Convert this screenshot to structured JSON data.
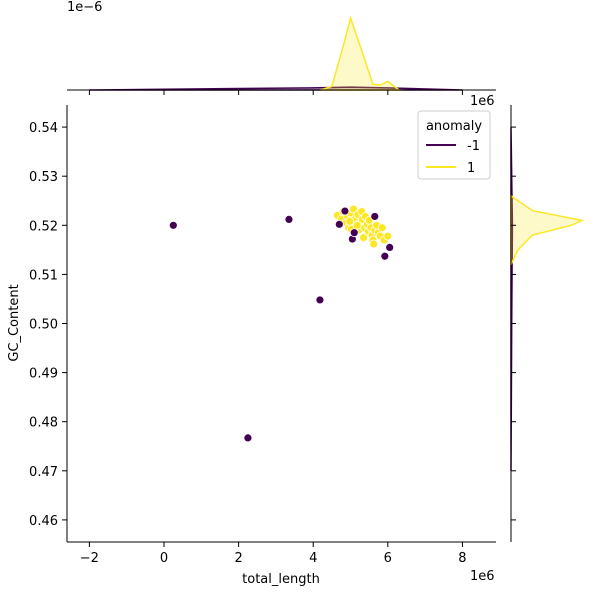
{
  "chart_data": {
    "type": "scatter",
    "title": "",
    "xlabel": "total_length",
    "ylabel": "GC_Content",
    "x_scale_label": "1e6",
    "y_scale_label": "",
    "top_marginal_scale_label": "1e−6",
    "right_marginal_scale_label": "1e6",
    "xlim": [
      -2.6,
      8.9
    ],
    "ylim": [
      0.4555,
      0.5445
    ],
    "x_ticks": [
      -2,
      0,
      2,
      4,
      6,
      8
    ],
    "x_tick_labels": [
      "−2",
      "0",
      "2",
      "4",
      "6",
      "8"
    ],
    "y_ticks": [
      0.46,
      0.47,
      0.48,
      0.49,
      0.5,
      0.51,
      0.52,
      0.53,
      0.54
    ],
    "y_tick_labels": [
      "0.46",
      "0.47",
      "0.48",
      "0.49",
      "0.50",
      "0.51",
      "0.52",
      "0.53",
      "0.54"
    ],
    "grid": false,
    "legend": {
      "title": "anomaly",
      "placement": "top-right",
      "entries": [
        {
          "label": "-1",
          "color": "#440154"
        },
        {
          "label": "1",
          "color": "#fde725"
        }
      ]
    },
    "series": [
      {
        "name": "-1",
        "color": "#440154",
        "points": [
          {
            "x": 0.25,
            "y": 0.52
          },
          {
            "x": 2.25,
            "y": 0.4767
          },
          {
            "x": 3.35,
            "y": 0.5212
          },
          {
            "x": 4.18,
            "y": 0.5048
          },
          {
            "x": 4.7,
            "y": 0.5202
          },
          {
            "x": 4.85,
            "y": 0.5229
          },
          {
            "x": 5.05,
            "y": 0.5172
          },
          {
            "x": 5.1,
            "y": 0.5185
          },
          {
            "x": 5.65,
            "y": 0.5218
          },
          {
            "x": 5.92,
            "y": 0.5137
          },
          {
            "x": 6.05,
            "y": 0.5155
          }
        ]
      },
      {
        "name": "1",
        "color": "#fde725",
        "points": [
          {
            "x": 4.65,
            "y": 0.522
          },
          {
            "x": 4.75,
            "y": 0.5212
          },
          {
            "x": 4.8,
            "y": 0.5228
          },
          {
            "x": 4.88,
            "y": 0.5205
          },
          {
            "x": 4.92,
            "y": 0.5218
          },
          {
            "x": 4.95,
            "y": 0.5195
          },
          {
            "x": 5.0,
            "y": 0.5225
          },
          {
            "x": 5.05,
            "y": 0.521
          },
          {
            "x": 5.08,
            "y": 0.5233
          },
          {
            "x": 5.12,
            "y": 0.5198
          },
          {
            "x": 5.15,
            "y": 0.5215
          },
          {
            "x": 5.2,
            "y": 0.5222
          },
          {
            "x": 5.22,
            "y": 0.519
          },
          {
            "x": 5.25,
            "y": 0.5205
          },
          {
            "x": 5.3,
            "y": 0.5228
          },
          {
            "x": 5.32,
            "y": 0.5212
          },
          {
            "x": 5.38,
            "y": 0.5195
          },
          {
            "x": 5.4,
            "y": 0.5218
          },
          {
            "x": 5.45,
            "y": 0.5202
          },
          {
            "x": 5.48,
            "y": 0.5188
          },
          {
            "x": 5.5,
            "y": 0.521
          },
          {
            "x": 5.55,
            "y": 0.5195
          },
          {
            "x": 5.58,
            "y": 0.518
          },
          {
            "x": 5.6,
            "y": 0.517
          },
          {
            "x": 5.62,
            "y": 0.5162
          },
          {
            "x": 5.65,
            "y": 0.519
          },
          {
            "x": 5.7,
            "y": 0.52
          },
          {
            "x": 5.75,
            "y": 0.5185
          },
          {
            "x": 5.8,
            "y": 0.5178
          },
          {
            "x": 5.85,
            "y": 0.5195
          },
          {
            "x": 5.9,
            "y": 0.517
          },
          {
            "x": 6.0,
            "y": 0.5178
          },
          {
            "x": 5.02,
            "y": 0.5192
          },
          {
            "x": 4.98,
            "y": 0.5208
          },
          {
            "x": 5.35,
            "y": 0.5175
          },
          {
            "x": 5.18,
            "y": 0.52
          }
        ]
      }
    ],
    "top_marginal": {
      "type": "area",
      "series": [
        {
          "name": "-1",
          "color": "#440154",
          "x": [
            -2,
            0,
            2,
            4,
            5,
            6,
            8
          ],
          "y": [
            0.0,
            0.01,
            0.02,
            0.03,
            0.04,
            0.03,
            0.0
          ]
        },
        {
          "name": "1",
          "color": "#fde725",
          "x": [
            4.2,
            4.5,
            4.8,
            5.0,
            5.3,
            5.6,
            5.8,
            6.0,
            6.3
          ],
          "y": [
            0.0,
            0.05,
            0.6,
            1.0,
            0.55,
            0.08,
            0.07,
            0.12,
            0.0
          ]
        }
      ]
    },
    "right_marginal": {
      "type": "area",
      "series": [
        {
          "name": "-1",
          "color": "#440154",
          "y": [
            0.47,
            0.5,
            0.52,
            0.54
          ],
          "x": [
            0.0,
            0.01,
            0.02,
            0.0
          ]
        },
        {
          "name": "1",
          "color": "#fde725",
          "y": [
            0.512,
            0.515,
            0.518,
            0.52,
            0.521,
            0.523,
            0.526
          ],
          "x": [
            0.0,
            0.1,
            0.3,
            0.85,
            1.0,
            0.3,
            0.0
          ]
        }
      ]
    }
  }
}
